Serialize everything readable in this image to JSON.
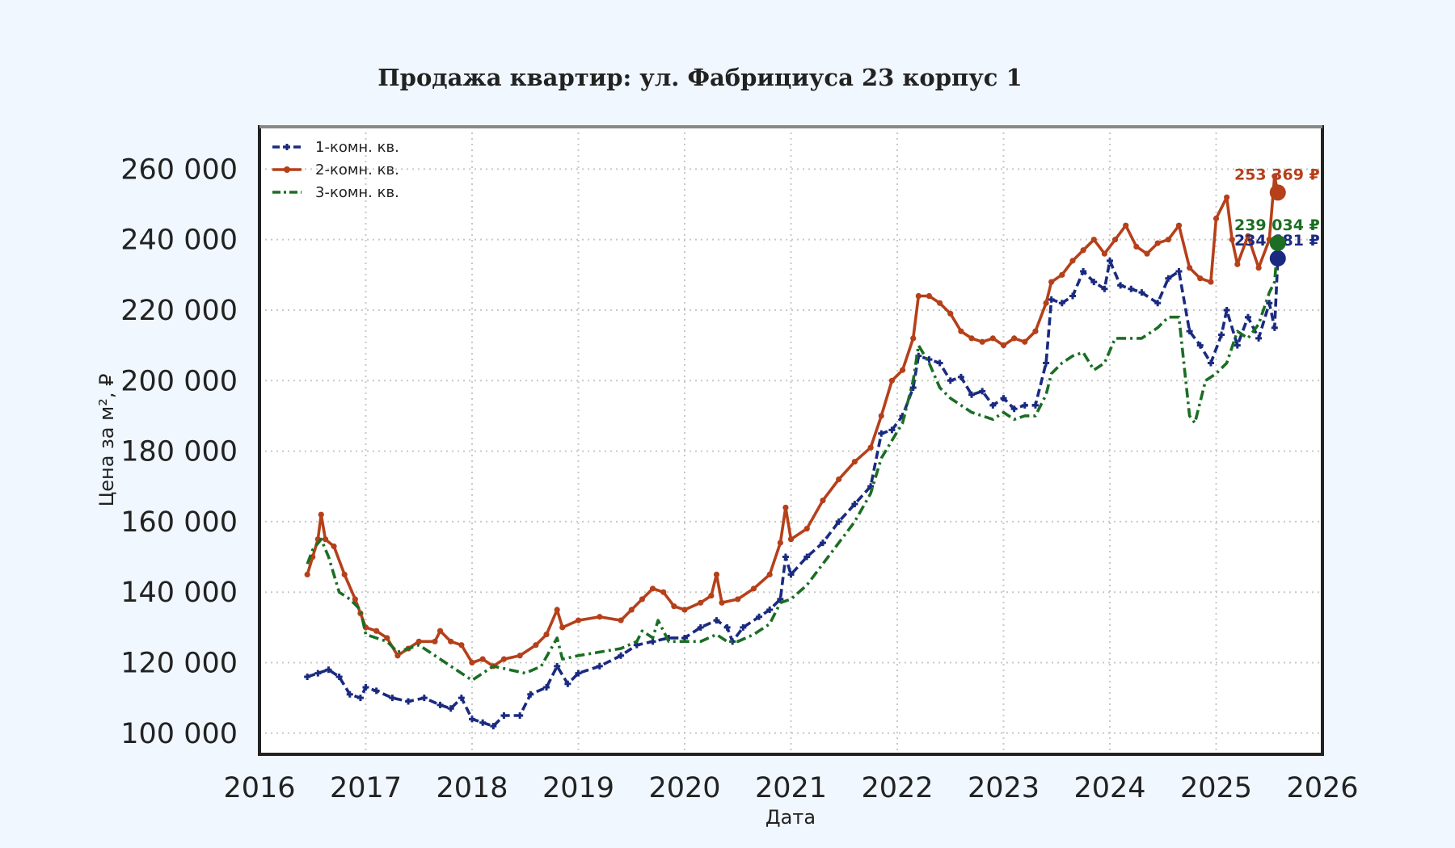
{
  "colors": {
    "background": "#f0f7ff",
    "plot_background": "#ffffff",
    "frame": "#222222",
    "frame_top": "#888888",
    "grid": "#c8c8c8"
  },
  "chart_data": {
    "type": "line",
    "title": "Продажа квартир: ул. Фабрициуса 23 корпус 1",
    "xlabel": "Дата",
    "ylabel": "Цена за м², ₽",
    "xlim": [
      2016.0,
      2026.0
    ],
    "ylim": [
      94000,
      272000
    ],
    "x_ticks": [
      2016,
      2017,
      2018,
      2019,
      2020,
      2021,
      2022,
      2023,
      2024,
      2025,
      2026
    ],
    "x_tick_labels": [
      "2016",
      "2017",
      "2018",
      "2019",
      "2020",
      "2021",
      "2022",
      "2023",
      "2024",
      "2025",
      "2026"
    ],
    "y_ticks": [
      100000,
      120000,
      140000,
      160000,
      180000,
      200000,
      220000,
      240000,
      260000
    ],
    "y_tick_labels": [
      "100 000",
      "120 000",
      "140 000",
      "160 000",
      "180 000",
      "200 000",
      "220 000",
      "240 000",
      "260 000"
    ],
    "grid": true,
    "legend_position": "top-left",
    "series": [
      {
        "name": "1-комн. кв.",
        "color": "#1a2a80",
        "line_style": "dashed",
        "marker": "plus",
        "end_label": "234 681 ₽",
        "points": [
          [
            2016.45,
            116000
          ],
          [
            2016.55,
            117000
          ],
          [
            2016.65,
            118000
          ],
          [
            2016.75,
            116000
          ],
          [
            2016.85,
            111000
          ],
          [
            2016.95,
            110000
          ],
          [
            2017.0,
            113000
          ],
          [
            2017.1,
            112000
          ],
          [
            2017.25,
            110000
          ],
          [
            2017.4,
            109000
          ],
          [
            2017.55,
            110000
          ],
          [
            2017.7,
            108000
          ],
          [
            2017.8,
            107000
          ],
          [
            2017.9,
            110000
          ],
          [
            2018.0,
            104000
          ],
          [
            2018.1,
            103000
          ],
          [
            2018.2,
            102000
          ],
          [
            2018.3,
            105000
          ],
          [
            2018.45,
            105000
          ],
          [
            2018.55,
            111000
          ],
          [
            2018.7,
            113000
          ],
          [
            2018.8,
            119000
          ],
          [
            2018.9,
            114000
          ],
          [
            2019.0,
            117000
          ],
          [
            2019.2,
            119000
          ],
          [
            2019.4,
            122000
          ],
          [
            2019.55,
            125000
          ],
          [
            2019.7,
            126000
          ],
          [
            2019.85,
            127000
          ],
          [
            2020.0,
            127000
          ],
          [
            2020.15,
            130000
          ],
          [
            2020.3,
            132000
          ],
          [
            2020.4,
            130000
          ],
          [
            2020.45,
            126000
          ],
          [
            2020.55,
            130000
          ],
          [
            2020.7,
            133000
          ],
          [
            2020.8,
            135000
          ],
          [
            2020.9,
            138000
          ],
          [
            2020.95,
            150000
          ],
          [
            2021.0,
            145000
          ],
          [
            2021.15,
            150000
          ],
          [
            2021.3,
            154000
          ],
          [
            2021.45,
            160000
          ],
          [
            2021.6,
            165000
          ],
          [
            2021.75,
            170000
          ],
          [
            2021.85,
            185000
          ],
          [
            2021.95,
            186000
          ],
          [
            2022.05,
            190000
          ],
          [
            2022.15,
            198000
          ],
          [
            2022.2,
            207000
          ],
          [
            2022.3,
            206000
          ],
          [
            2022.4,
            205000
          ],
          [
            2022.5,
            200000
          ],
          [
            2022.6,
            201000
          ],
          [
            2022.7,
            196000
          ],
          [
            2022.8,
            197000
          ],
          [
            2022.9,
            193000
          ],
          [
            2023.0,
            195000
          ],
          [
            2023.1,
            192000
          ],
          [
            2023.2,
            193000
          ],
          [
            2023.3,
            193000
          ],
          [
            2023.4,
            205000
          ],
          [
            2023.45,
            223000
          ],
          [
            2023.55,
            222000
          ],
          [
            2023.65,
            224000
          ],
          [
            2023.75,
            231000
          ],
          [
            2023.85,
            228000
          ],
          [
            2023.95,
            226000
          ],
          [
            2024.0,
            234000
          ],
          [
            2024.1,
            227000
          ],
          [
            2024.2,
            226000
          ],
          [
            2024.3,
            225000
          ],
          [
            2024.45,
            222000
          ],
          [
            2024.55,
            229000
          ],
          [
            2024.65,
            231000
          ],
          [
            2024.75,
            214000
          ],
          [
            2024.85,
            210000
          ],
          [
            2024.95,
            205000
          ],
          [
            2025.05,
            213000
          ],
          [
            2025.1,
            220000
          ],
          [
            2025.2,
            210000
          ],
          [
            2025.3,
            218000
          ],
          [
            2025.4,
            212000
          ],
          [
            2025.5,
            222000
          ],
          [
            2025.55,
            215000
          ],
          [
            2025.58,
            234681
          ]
        ]
      },
      {
        "name": "2-комн. кв.",
        "color": "#b5401a",
        "line_style": "solid",
        "marker": "dot",
        "end_label": "253 369 ₽",
        "points": [
          [
            2016.45,
            145000
          ],
          [
            2016.5,
            150000
          ],
          [
            2016.55,
            155000
          ],
          [
            2016.58,
            162000
          ],
          [
            2016.62,
            155000
          ],
          [
            2016.7,
            153000
          ],
          [
            2016.8,
            145000
          ],
          [
            2016.9,
            138000
          ],
          [
            2016.95,
            134000
          ],
          [
            2017.0,
            130000
          ],
          [
            2017.1,
            129000
          ],
          [
            2017.2,
            127000
          ],
          [
            2017.3,
            122000
          ],
          [
            2017.4,
            124000
          ],
          [
            2017.5,
            126000
          ],
          [
            2017.65,
            126000
          ],
          [
            2017.7,
            129000
          ],
          [
            2017.8,
            126000
          ],
          [
            2017.9,
            125000
          ],
          [
            2018.0,
            120000
          ],
          [
            2018.1,
            121000
          ],
          [
            2018.2,
            119000
          ],
          [
            2018.3,
            121000
          ],
          [
            2018.45,
            122000
          ],
          [
            2018.6,
            125000
          ],
          [
            2018.7,
            128000
          ],
          [
            2018.8,
            135000
          ],
          [
            2018.85,
            130000
          ],
          [
            2019.0,
            132000
          ],
          [
            2019.2,
            133000
          ],
          [
            2019.4,
            132000
          ],
          [
            2019.5,
            135000
          ],
          [
            2019.6,
            138000
          ],
          [
            2019.7,
            141000
          ],
          [
            2019.8,
            140000
          ],
          [
            2019.9,
            136000
          ],
          [
            2020.0,
            135000
          ],
          [
            2020.15,
            137000
          ],
          [
            2020.25,
            139000
          ],
          [
            2020.3,
            145000
          ],
          [
            2020.35,
            137000
          ],
          [
            2020.5,
            138000
          ],
          [
            2020.65,
            141000
          ],
          [
            2020.8,
            145000
          ],
          [
            2020.9,
            154000
          ],
          [
            2020.95,
            164000
          ],
          [
            2021.0,
            155000
          ],
          [
            2021.15,
            158000
          ],
          [
            2021.3,
            166000
          ],
          [
            2021.45,
            172000
          ],
          [
            2021.6,
            177000
          ],
          [
            2021.75,
            181000
          ],
          [
            2021.85,
            190000
          ],
          [
            2021.95,
            200000
          ],
          [
            2022.05,
            203000
          ],
          [
            2022.15,
            212000
          ],
          [
            2022.2,
            224000
          ],
          [
            2022.3,
            224000
          ],
          [
            2022.4,
            222000
          ],
          [
            2022.5,
            219000
          ],
          [
            2022.6,
            214000
          ],
          [
            2022.7,
            212000
          ],
          [
            2022.8,
            211000
          ],
          [
            2022.9,
            212000
          ],
          [
            2023.0,
            210000
          ],
          [
            2023.1,
            212000
          ],
          [
            2023.2,
            211000
          ],
          [
            2023.3,
            214000
          ],
          [
            2023.4,
            222000
          ],
          [
            2023.45,
            228000
          ],
          [
            2023.55,
            230000
          ],
          [
            2023.65,
            234000
          ],
          [
            2023.75,
            237000
          ],
          [
            2023.85,
            240000
          ],
          [
            2023.95,
            236000
          ],
          [
            2024.05,
            240000
          ],
          [
            2024.15,
            244000
          ],
          [
            2024.25,
            238000
          ],
          [
            2024.35,
            236000
          ],
          [
            2024.45,
            239000
          ],
          [
            2024.55,
            240000
          ],
          [
            2024.65,
            244000
          ],
          [
            2024.75,
            232000
          ],
          [
            2024.85,
            229000
          ],
          [
            2024.95,
            228000
          ],
          [
            2025.0,
            246000
          ],
          [
            2025.1,
            252000
          ],
          [
            2025.15,
            240000
          ],
          [
            2025.2,
            233000
          ],
          [
            2025.3,
            241000
          ],
          [
            2025.4,
            232000
          ],
          [
            2025.5,
            240000
          ],
          [
            2025.55,
            258000
          ],
          [
            2025.58,
            253369
          ]
        ]
      },
      {
        "name": "3-комн. кв.",
        "color": "#1b6e23",
        "line_style": "dashdot",
        "marker": "none",
        "end_label": "239 034 ₽",
        "points": [
          [
            2016.45,
            148000
          ],
          [
            2016.5,
            152000
          ],
          [
            2016.58,
            155000
          ],
          [
            2016.65,
            150000
          ],
          [
            2016.75,
            140000
          ],
          [
            2016.85,
            138000
          ],
          [
            2016.95,
            135000
          ],
          [
            2017.0,
            128000
          ],
          [
            2017.1,
            127000
          ],
          [
            2017.2,
            126000
          ],
          [
            2017.3,
            123000
          ],
          [
            2017.4,
            124000
          ],
          [
            2017.5,
            125000
          ],
          [
            2017.6,
            123000
          ],
          [
            2017.7,
            121000
          ],
          [
            2017.8,
            119000
          ],
          [
            2017.9,
            117000
          ],
          [
            2018.0,
            115000
          ],
          [
            2018.1,
            117000
          ],
          [
            2018.2,
            119000
          ],
          [
            2018.35,
            118000
          ],
          [
            2018.5,
            117000
          ],
          [
            2018.65,
            119000
          ],
          [
            2018.8,
            127000
          ],
          [
            2018.85,
            121000
          ],
          [
            2019.0,
            122000
          ],
          [
            2019.2,
            123000
          ],
          [
            2019.4,
            124000
          ],
          [
            2019.55,
            126000
          ],
          [
            2019.6,
            129000
          ],
          [
            2019.7,
            127000
          ],
          [
            2019.75,
            132000
          ],
          [
            2019.85,
            126000
          ],
          [
            2020.0,
            126000
          ],
          [
            2020.15,
            126000
          ],
          [
            2020.3,
            128000
          ],
          [
            2020.4,
            126000
          ],
          [
            2020.5,
            126000
          ],
          [
            2020.65,
            128000
          ],
          [
            2020.8,
            131000
          ],
          [
            2020.9,
            137000
          ],
          [
            2021.0,
            138000
          ],
          [
            2021.15,
            142000
          ],
          [
            2021.3,
            148000
          ],
          [
            2021.45,
            154000
          ],
          [
            2021.6,
            160000
          ],
          [
            2021.75,
            168000
          ],
          [
            2021.85,
            178000
          ],
          [
            2021.95,
            183000
          ],
          [
            2022.05,
            188000
          ],
          [
            2022.15,
            200000
          ],
          [
            2022.2,
            210000
          ],
          [
            2022.3,
            205000
          ],
          [
            2022.4,
            198000
          ],
          [
            2022.5,
            195000
          ],
          [
            2022.6,
            193000
          ],
          [
            2022.7,
            191000
          ],
          [
            2022.8,
            190000
          ],
          [
            2022.9,
            189000
          ],
          [
            2023.0,
            191000
          ],
          [
            2023.1,
            189000
          ],
          [
            2023.2,
            190000
          ],
          [
            2023.3,
            190000
          ],
          [
            2023.4,
            196000
          ],
          [
            2023.45,
            202000
          ],
          [
            2023.55,
            205000
          ],
          [
            2023.65,
            207000
          ],
          [
            2023.75,
            208000
          ],
          [
            2023.85,
            203000
          ],
          [
            2023.95,
            205000
          ],
          [
            2024.05,
            212000
          ],
          [
            2024.15,
            212000
          ],
          [
            2024.3,
            212000
          ],
          [
            2024.45,
            215000
          ],
          [
            2024.55,
            218000
          ],
          [
            2024.65,
            218000
          ],
          [
            2024.75,
            190000
          ],
          [
            2024.8,
            188000
          ],
          [
            2024.9,
            200000
          ],
          [
            2025.0,
            202000
          ],
          [
            2025.1,
            205000
          ],
          [
            2025.2,
            214000
          ],
          [
            2025.3,
            212000
          ],
          [
            2025.4,
            216000
          ],
          [
            2025.5,
            225000
          ],
          [
            2025.55,
            228000
          ],
          [
            2025.58,
            239034
          ]
        ]
      }
    ]
  }
}
